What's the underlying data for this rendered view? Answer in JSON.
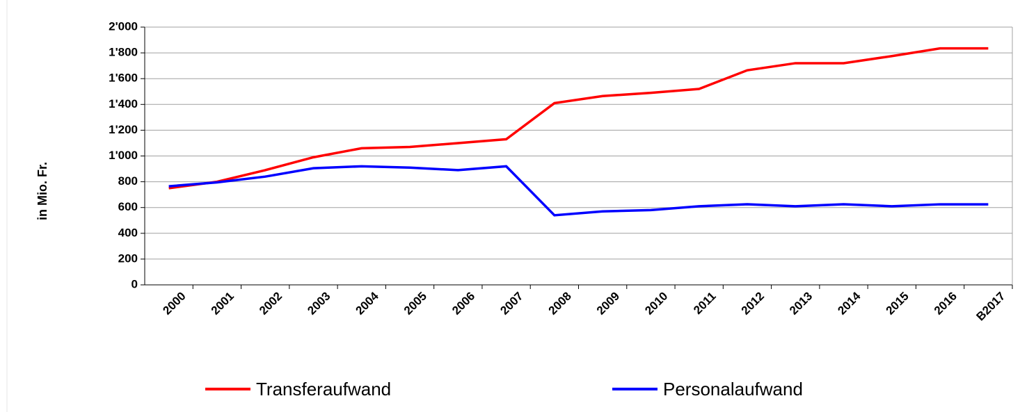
{
  "chart_data": {
    "type": "line",
    "ylabel": "in Mio. Fr.",
    "categories": [
      "2000",
      "2001",
      "2002",
      "2003",
      "2004",
      "2005",
      "2006",
      "2007",
      "2008",
      "2009",
      "2010",
      "2011",
      "2012",
      "2013",
      "2014",
      "2015",
      "2016",
      "B2017"
    ],
    "series": [
      {
        "name": "Transferaufwand",
        "color": "#ff0000",
        "values": [
          750,
          800,
          890,
          990,
          1060,
          1070,
          1100,
          1130,
          1410,
          1465,
          1490,
          1520,
          1665,
          1720,
          1720,
          1775,
          1835,
          1835
        ]
      },
      {
        "name": "Personalaufwand",
        "color": "#0000ff",
        "values": [
          765,
          795,
          840,
          905,
          920,
          910,
          890,
          920,
          540,
          570,
          580,
          610,
          625,
          610,
          625,
          610,
          625,
          625
        ]
      }
    ],
    "ylim": [
      0,
      2000
    ],
    "yticks": [
      0,
      200,
      400,
      600,
      800,
      {
        "value": 1000,
        "label": "1'000"
      },
      {
        "value": 1200,
        "label": "1'200"
      },
      {
        "value": 1400,
        "label": "1'400"
      },
      {
        "value": 1600,
        "label": "1'600"
      },
      {
        "value": 1800,
        "label": "1'800"
      },
      {
        "value": 2000,
        "label": "2'000"
      }
    ],
    "grid": true,
    "legend": "bottom"
  }
}
